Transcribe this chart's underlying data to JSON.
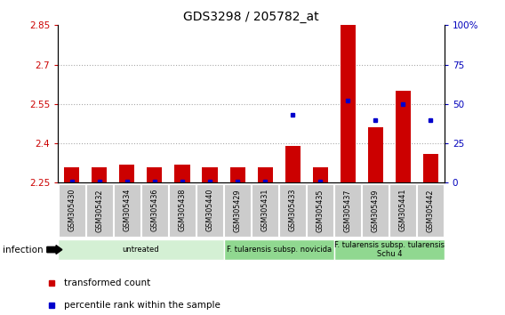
{
  "title": "GDS3298 / 205782_at",
  "samples": [
    "GSM305430",
    "GSM305432",
    "GSM305434",
    "GSM305436",
    "GSM305438",
    "GSM305440",
    "GSM305429",
    "GSM305431",
    "GSM305433",
    "GSM305435",
    "GSM305437",
    "GSM305439",
    "GSM305441",
    "GSM305442"
  ],
  "transformed_count": [
    2.31,
    2.31,
    2.32,
    2.31,
    2.32,
    2.31,
    2.31,
    2.31,
    2.39,
    2.31,
    2.85,
    2.46,
    2.6,
    2.36
  ],
  "percentile_rank": [
    1,
    1,
    1,
    1,
    1,
    1,
    1,
    1,
    43,
    1,
    52,
    40,
    50,
    40
  ],
  "ylim_left": [
    2.25,
    2.85
  ],
  "ylim_right": [
    0,
    100
  ],
  "yticks_left": [
    2.25,
    2.4,
    2.55,
    2.7,
    2.85
  ],
  "yticks_right": [
    0,
    25,
    50,
    75,
    100
  ],
  "groups": [
    {
      "label": "untreated",
      "start": 0,
      "end": 6
    },
    {
      "label": "F. tularensis subsp. novicida",
      "start": 6,
      "end": 10
    },
    {
      "label": "F. tularensis subsp. tularensis\nSchu 4",
      "start": 10,
      "end": 14
    }
  ],
  "group_colors": [
    "#d4f0d4",
    "#90d890",
    "#90d890"
  ],
  "bar_color": "#cc0000",
  "dot_color": "#0000cc",
  "bar_width": 0.55,
  "baseline": 2.25,
  "ylabel_left_color": "#cc0000",
  "ylabel_right_color": "#0000bb",
  "grid_color": "#aaaaaa",
  "tick_label_bg": "#cccccc",
  "infection_label": "infection",
  "bg_color": "#ffffff",
  "legend_items": [
    {
      "color": "#cc0000",
      "marker": "s",
      "label": "transformed count"
    },
    {
      "color": "#0000cc",
      "marker": "s",
      "label": "percentile rank within the sample"
    }
  ]
}
